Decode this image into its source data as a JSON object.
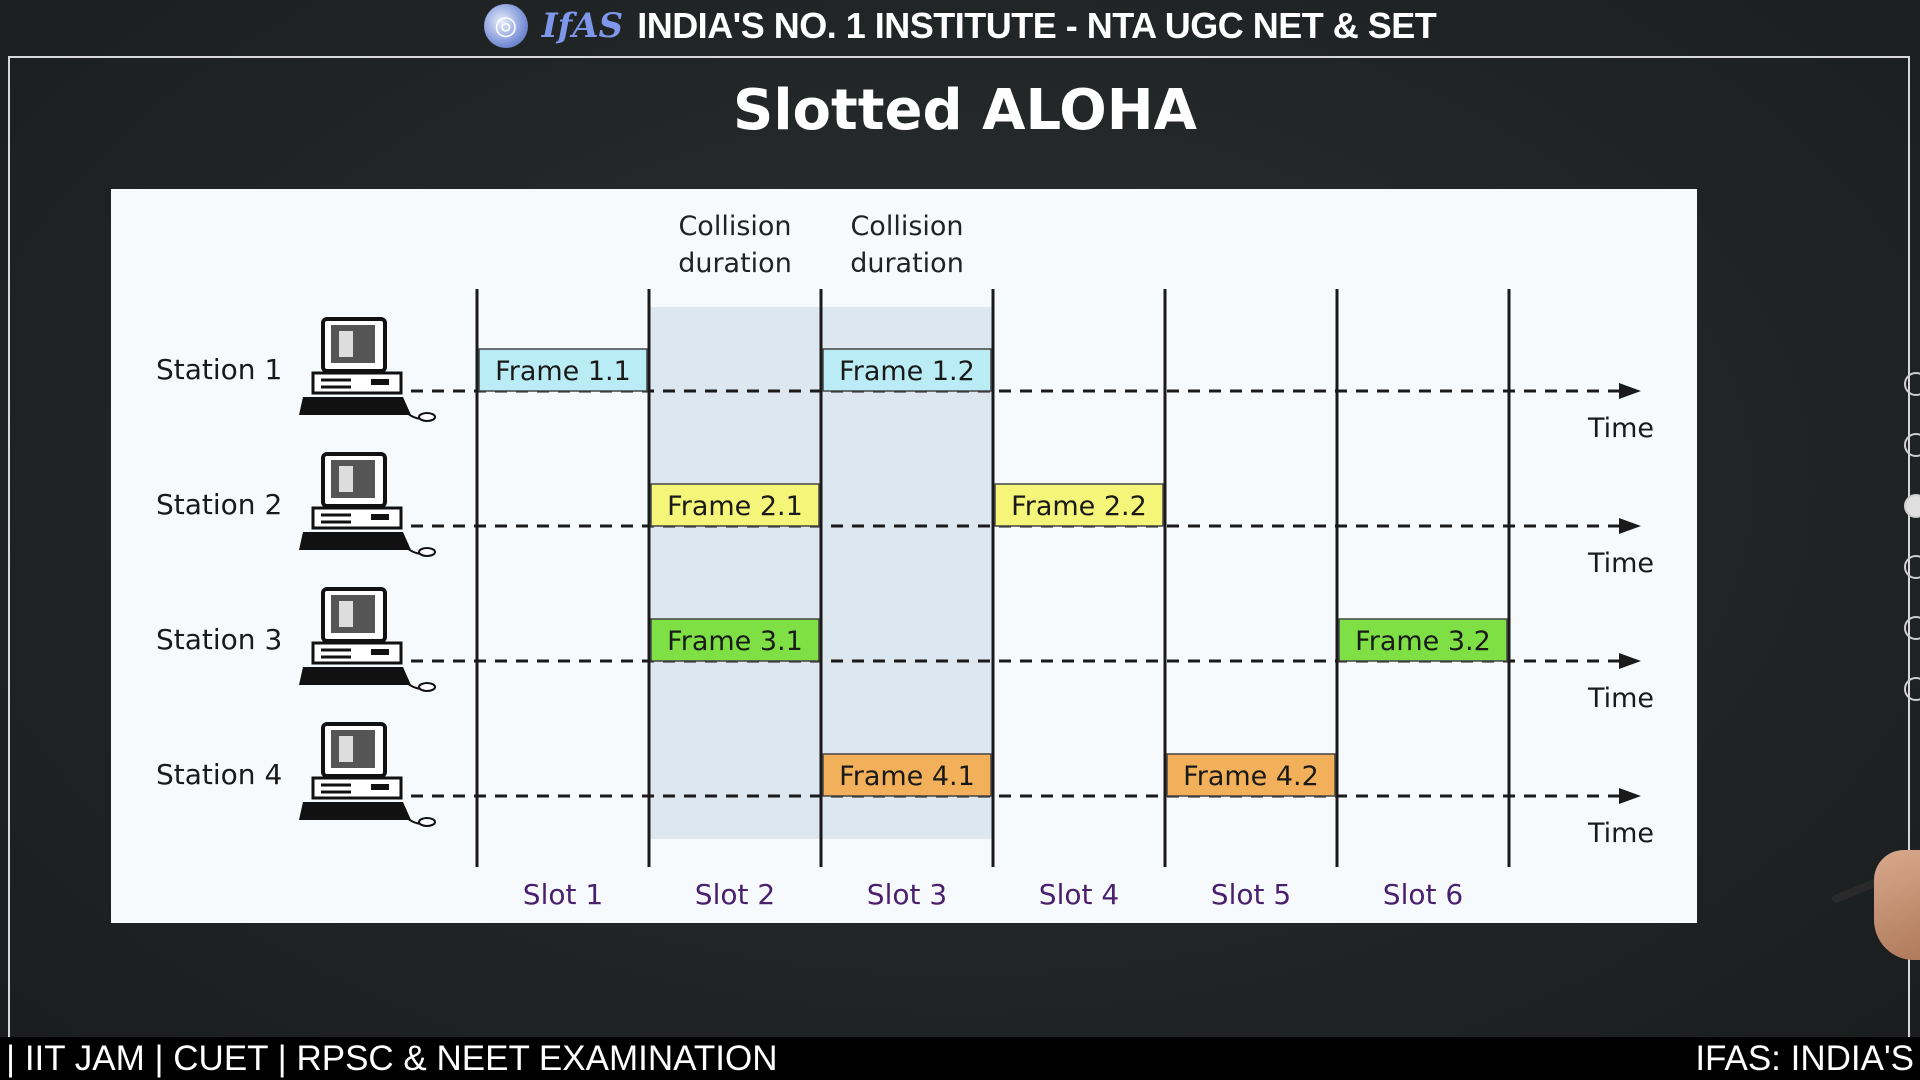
{
  "banner": {
    "logo_text": "IfAS",
    "title": "INDIA'S NO. 1 INSTITUTE - NTA UGC NET & SET"
  },
  "slide": {
    "title": "Slotted ALOHA"
  },
  "diagram": {
    "collision_label_line1": "Collision",
    "collision_label_line2": "duration",
    "collision_slots": [
      2,
      3
    ],
    "time_label": "Time",
    "slots": [
      "Slot 1",
      "Slot 2",
      "Slot 3",
      "Slot 4",
      "Slot 5",
      "Slot 6"
    ],
    "stations": [
      {
        "label": "Station 1",
        "frames": [
          {
            "label": "Frame 1.1",
            "slot": 1
          },
          {
            "label": "Frame 1.2",
            "slot": 3
          }
        ]
      },
      {
        "label": "Station 2",
        "frames": [
          {
            "label": "Frame 2.1",
            "slot": 2
          },
          {
            "label": "Frame 2.2",
            "slot": 4
          }
        ]
      },
      {
        "label": "Station 3",
        "frames": [
          {
            "label": "Frame 3.1",
            "slot": 2
          },
          {
            "label": "Frame 3.2",
            "slot": 6
          }
        ]
      },
      {
        "label": "Station 4",
        "frames": [
          {
            "label": "Frame 4.1",
            "slot": 3
          },
          {
            "label": "Frame 4.2",
            "slot": 5
          }
        ]
      }
    ],
    "colors": {
      "station_1": "#b9ecf4",
      "station_2": "#f5f57a",
      "station_3": "#7ee044",
      "station_4": "#f2b05a",
      "collision_band": "#dde7ef",
      "slot_label": "#4a1f6e"
    }
  },
  "ticker": {
    "left_text": "| IIT JAM | CUET | RPSC & NEET EXAMINATION",
    "right_text": "IFAS: INDIA'S"
  }
}
